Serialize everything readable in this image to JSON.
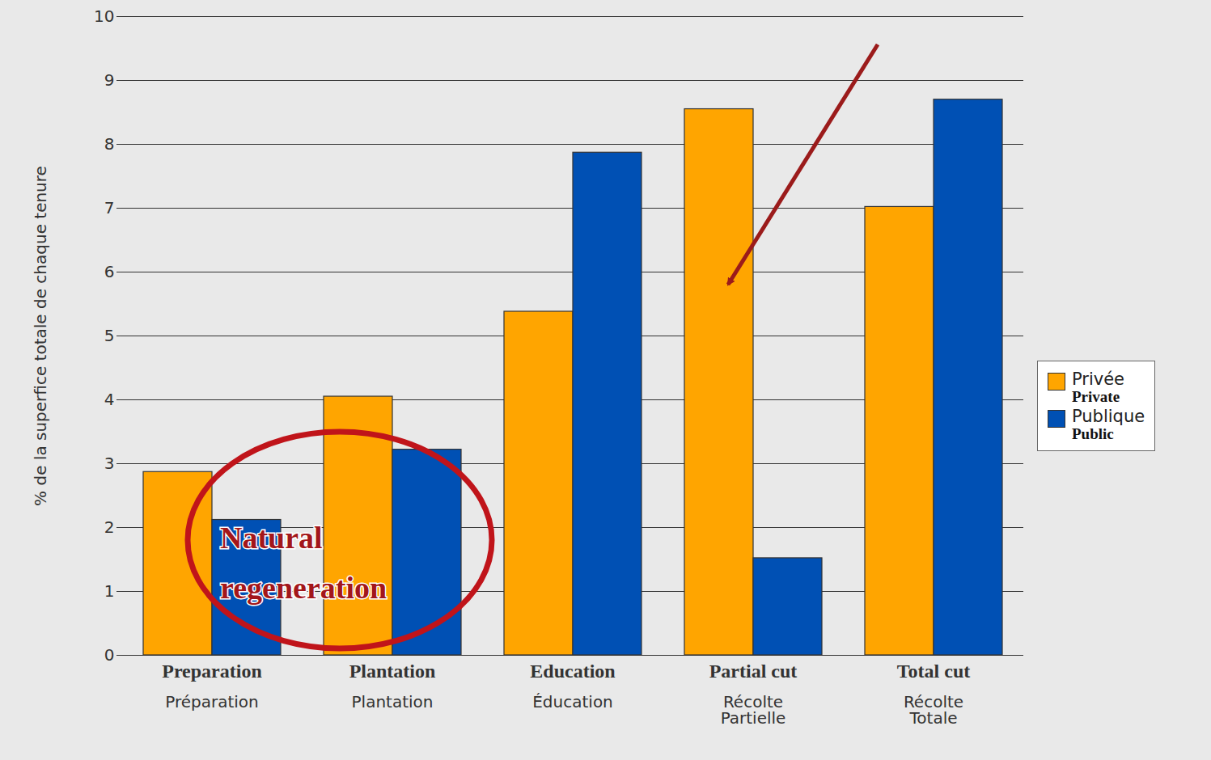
{
  "chart_data": {
    "type": "bar",
    "y_label": "% de la superfice totale de chaque tenure",
    "categories": [
      "Préparation",
      "Plantation",
      "Éducation",
      "Récolte Partielle",
      "Récolte Totale"
    ],
    "category_translations": [
      "Preparation",
      "Plantation",
      "Education",
      "Partial cut",
      "Total cut"
    ],
    "series": [
      {
        "name": "Privée",
        "name_translation": "Private",
        "color": "#FFA500",
        "values": [
          2.87,
          4.05,
          5.38,
          8.55,
          7.02
        ]
      },
      {
        "name": "Publique",
        "name_translation": "Public",
        "color": "#0050B4",
        "values": [
          2.12,
          3.22,
          7.87,
          1.52,
          8.7
        ]
      }
    ],
    "ylim": [
      0,
      10
    ],
    "yticks": [
      0,
      1,
      2,
      3,
      4,
      5,
      6,
      7,
      8,
      9,
      10
    ],
    "grid": true,
    "legend": "right",
    "annotations": [
      {
        "text": "Natural regeneration"
      }
    ]
  }
}
